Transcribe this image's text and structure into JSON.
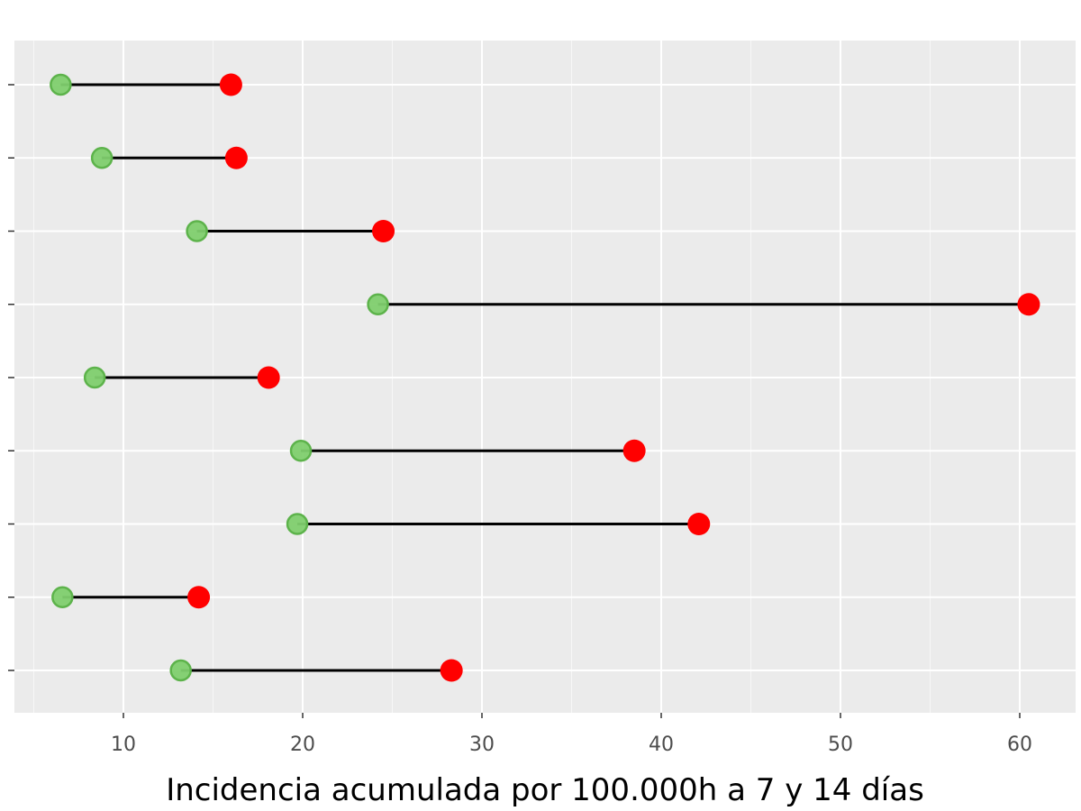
{
  "chart_data": {
    "type": "dumbbell",
    "title": "",
    "xlabel": "Incidencia acumulada por 100.000h a 7 y 14 días",
    "ylabel": "",
    "xlim": [
      5,
      63
    ],
    "x_ticks": [
      10,
      20,
      30,
      40,
      50,
      60
    ],
    "x_tick_labels": [
      "10",
      "20",
      "30",
      "40",
      "50",
      "60"
    ],
    "grid": true,
    "legend": "none",
    "colors": {
      "panel": "#ebebeb",
      "grid": "#ffffff",
      "start_fill": "#7fcf6e",
      "start_stroke": "#5db34b",
      "end": "#ff0000",
      "segment": "#000000"
    },
    "rows": [
      {
        "start": 6.5,
        "end": 16.0
      },
      {
        "start": 8.8,
        "end": 16.3
      },
      {
        "start": 14.1,
        "end": 24.5
      },
      {
        "start": 24.2,
        "end": 60.5
      },
      {
        "start": 8.4,
        "end": 18.1
      },
      {
        "start": 19.9,
        "end": 38.5
      },
      {
        "start": 19.7,
        "end": 42.1
      },
      {
        "start": 6.6,
        "end": 14.2
      },
      {
        "start": 13.2,
        "end": 28.3
      }
    ]
  }
}
